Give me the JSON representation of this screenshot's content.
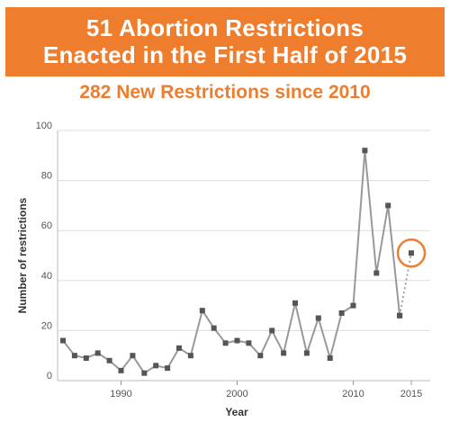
{
  "header": {
    "title_line1": "51 Abortion Restrictions",
    "title_line2": "Enacted in the First Half of 2015",
    "subtitle": "282 New Restrictions since 2010"
  },
  "colors": {
    "accent": "#ee7d2d",
    "series": "#999999",
    "marker": "#555555",
    "grid": "#dcdcdc"
  },
  "chart_data": {
    "type": "line",
    "xlabel": "Year",
    "ylabel": "Number of restrictions",
    "xlim": [
      1985,
      2015
    ],
    "ylim": [
      0,
      100
    ],
    "xticks": [
      1990,
      2000,
      2010,
      2015
    ],
    "yticks": [
      0,
      20,
      40,
      60,
      80,
      100
    ],
    "grid": "horizontal",
    "series": [
      {
        "x": [
          1985,
          1986,
          1987,
          1988,
          1989,
          1990,
          1991,
          1992,
          1993,
          1994,
          1995,
          1996,
          1997,
          1998,
          1999,
          2000,
          2001,
          2002,
          2003,
          2004,
          2005,
          2006,
          2007,
          2008,
          2009,
          2010,
          2011,
          2012,
          2013,
          2014
        ],
        "values": [
          16,
          10,
          9,
          11,
          8,
          4,
          10,
          3,
          6,
          5,
          13,
          10,
          28,
          21,
          15,
          16,
          15,
          10,
          20,
          11,
          31,
          11,
          25,
          9,
          27,
          30,
          92,
          43,
          70,
          26
        ]
      },
      {
        "style": "dotted",
        "x": [
          2014,
          2015
        ],
        "values": [
          26,
          51
        ]
      }
    ],
    "highlight": {
      "x": 2015,
      "value": 51
    }
  }
}
